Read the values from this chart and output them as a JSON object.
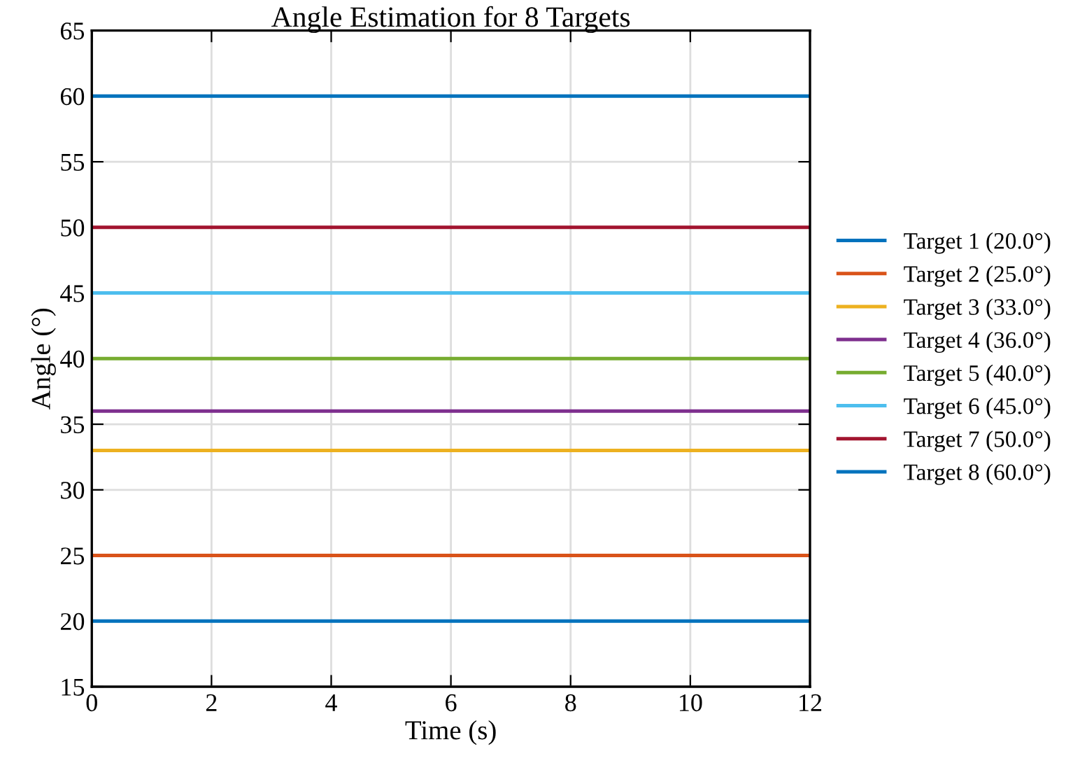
{
  "chart_data": {
    "type": "line",
    "title": "Angle Estimation for 8 Targets",
    "xlabel": "Time (s)",
    "ylabel": "Angle (°)",
    "x": [
      0,
      12
    ],
    "series": [
      {
        "name": "Target 1 (20.0°)",
        "color": "#0072bd",
        "values": [
          20,
          20
        ]
      },
      {
        "name": "Target 2 (25.0°)",
        "color": "#d95319",
        "values": [
          25,
          25
        ]
      },
      {
        "name": "Target 3 (33.0°)",
        "color": "#edb120",
        "values": [
          33,
          33
        ]
      },
      {
        "name": "Target 4 (36.0°)",
        "color": "#7e2f8e",
        "values": [
          36,
          36
        ]
      },
      {
        "name": "Target 5 (40.0°)",
        "color": "#77ac30",
        "values": [
          40,
          40
        ]
      },
      {
        "name": "Target 6 (45.0°)",
        "color": "#4dbeee",
        "values": [
          45,
          45
        ]
      },
      {
        "name": "Target 7 (50.0°)",
        "color": "#a2142f",
        "values": [
          50,
          50
        ]
      },
      {
        "name": "Target 8 (60.0°)",
        "color": "#0072bd",
        "values": [
          60,
          60
        ]
      }
    ],
    "xlim": [
      0,
      12
    ],
    "xticks": [
      0,
      2,
      4,
      6,
      8,
      10,
      12
    ],
    "ylim": [
      15,
      65
    ],
    "yticks": [
      15,
      20,
      25,
      30,
      35,
      40,
      45,
      50,
      55,
      60,
      65
    ],
    "grid": true,
    "legend": "right",
    "marker": "none",
    "line_style": "solid"
  }
}
